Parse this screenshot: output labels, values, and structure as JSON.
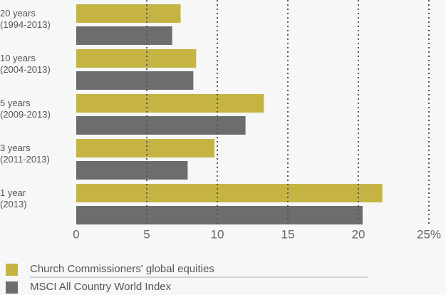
{
  "chart_data": {
    "type": "bar",
    "orientation": "horizontal",
    "categories": [
      "20 years\n(1994-2013)",
      "10 years\n(2004-2013)",
      "5 years\n(2009-2013)",
      "3 years\n(2011-2013)",
      "1 year\n(2013)"
    ],
    "series": [
      {
        "name": "Church Commissioners' global equities",
        "color": "#c5b443",
        "values": [
          7.4,
          8.5,
          13.3,
          9.8,
          21.7
        ]
      },
      {
        "name": "MSCI All Country World Index",
        "color": "#6d6d6d",
        "values": [
          6.8,
          8.3,
          12.0,
          7.9,
          20.3
        ]
      }
    ],
    "xlim": [
      0,
      25
    ],
    "xticks": [
      0,
      5,
      10,
      15,
      20,
      {
        "value": 25,
        "label": "25%"
      }
    ],
    "grid": true
  }
}
